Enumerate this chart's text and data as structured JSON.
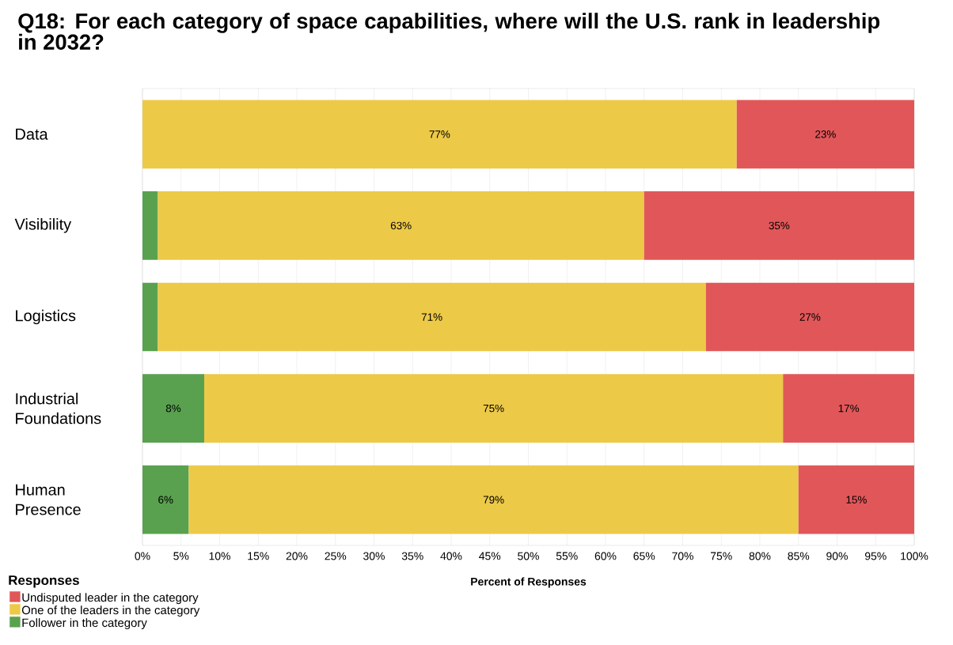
{
  "chart_data": {
    "type": "bar",
    "orientation": "horizontal",
    "stacked": true,
    "title": "Q18: For each category of space capabilities, where will the U.S. rank in leadership in 2032?",
    "xlabel": "Percent of Responses",
    "legend_title": "Responses",
    "legend": "bottom left",
    "grid": "x",
    "categories": [
      "Data",
      "Visibility",
      "Logistics",
      "Industrial Foundations",
      "Human Presence"
    ],
    "series": [
      {
        "name": "Follower in the category",
        "color": "#59a14f",
        "values": [
          null,
          2,
          2,
          8,
          6
        ],
        "value_labels": [
          null,
          null,
          null,
          "8%",
          "6%"
        ]
      },
      {
        "name": "One of the leaders in the category",
        "color": "#edc948",
        "values": [
          77,
          63,
          71,
          75,
          79
        ],
        "value_labels": [
          "77%",
          "63%",
          "71%",
          "75%",
          "79%"
        ]
      },
      {
        "name": "Undisputed leader in the category",
        "color": "#e15759",
        "values": [
          23,
          35,
          27,
          17,
          15
        ],
        "value_labels": [
          "23%",
          "35%",
          "27%",
          "17%",
          "15%"
        ]
      }
    ],
    "xlim": [
      0,
      100
    ],
    "xticks": [
      {
        "value": 0,
        "label": "0%"
      },
      {
        "value": 5,
        "label": "5%"
      },
      {
        "value": 10,
        "label": "10%"
      },
      {
        "value": 15,
        "label": "15%"
      },
      {
        "value": 20,
        "label": "20%"
      },
      {
        "value": 25,
        "label": "25%"
      },
      {
        "value": 30,
        "label": "30%"
      },
      {
        "value": 35,
        "label": "35%"
      },
      {
        "value": 40,
        "label": "40%"
      },
      {
        "value": 45,
        "label": "45%"
      },
      {
        "value": 50,
        "label": "50%"
      },
      {
        "value": 55,
        "label": "55%"
      },
      {
        "value": 60,
        "label": "60%"
      },
      {
        "value": 65,
        "label": "65%"
      },
      {
        "value": 70,
        "label": "70%"
      },
      {
        "value": 75,
        "label": "75%"
      },
      {
        "value": 80,
        "label": "80%"
      },
      {
        "value": 85,
        "label": "85%"
      },
      {
        "value": 90,
        "label": "90%"
      },
      {
        "value": 95,
        "label": "95%"
      },
      {
        "value": 100,
        "label": "100%"
      }
    ]
  }
}
